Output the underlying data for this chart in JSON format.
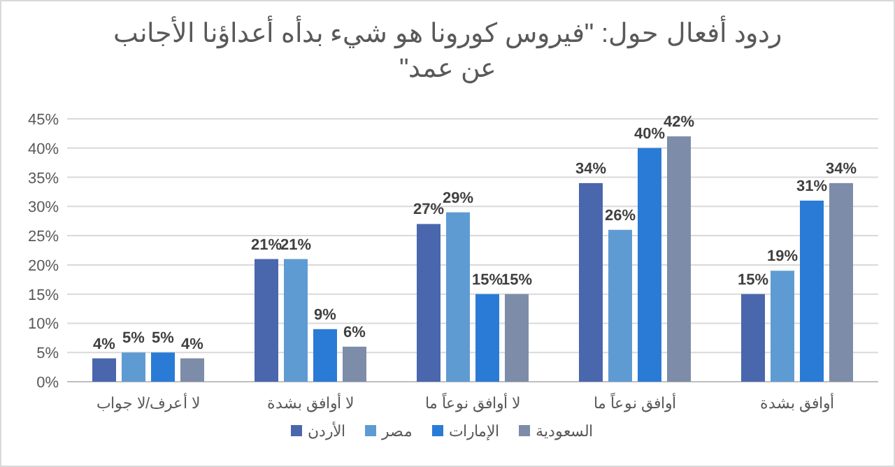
{
  "chart_data": {
    "type": "bar",
    "title": "ردود أفعال حول: \"فيروس كورونا هو شيء بدأه أعداؤنا الأجانب عن عمد\"",
    "categories": [
      "لا أعرف/لا جواب",
      "لا أوافق بشدة",
      "لا أوافق نوعاً ما",
      "أوافق نوعاً ما",
      "أوافق بشدة"
    ],
    "series": [
      {
        "name": "الأردن",
        "color": "#4a67ad",
        "values": [
          4,
          21,
          27,
          34,
          15
        ],
        "value_labels": [
          "4%",
          "21%",
          "27%",
          "34%",
          "15%"
        ]
      },
      {
        "name": "مصر",
        "color": "#5f9bd3",
        "values": [
          5,
          21,
          29,
          26,
          19
        ],
        "value_labels": [
          "5%",
          "21%",
          "29%",
          "26%",
          "19%"
        ]
      },
      {
        "name": "الإمارات",
        "color": "#2a7bd6",
        "values": [
          5,
          9,
          15,
          40,
          31
        ],
        "value_labels": [
          "5%",
          "9%",
          "15%",
          "40%",
          "31%"
        ]
      },
      {
        "name": "السعودية",
        "color": "#7d8ca8",
        "values": [
          4,
          6,
          15,
          42,
          34
        ],
        "value_labels": [
          "4%",
          "6%",
          "15%",
          "42%",
          "34%"
        ]
      }
    ],
    "ylim": [
      0,
      45
    ],
    "yticks": [
      {
        "value": 0,
        "label": "0%"
      },
      {
        "value": 5,
        "label": "5%"
      },
      {
        "value": 10,
        "label": "10%"
      },
      {
        "value": 15,
        "label": "15%"
      },
      {
        "value": 20,
        "label": "20%"
      },
      {
        "value": 25,
        "label": "25%"
      },
      {
        "value": 30,
        "label": "30%"
      },
      {
        "value": 35,
        "label": "35%"
      },
      {
        "value": 40,
        "label": "40%"
      },
      {
        "value": 45,
        "label": "45%"
      }
    ],
    "grid": "y",
    "legend": "bottom"
  }
}
